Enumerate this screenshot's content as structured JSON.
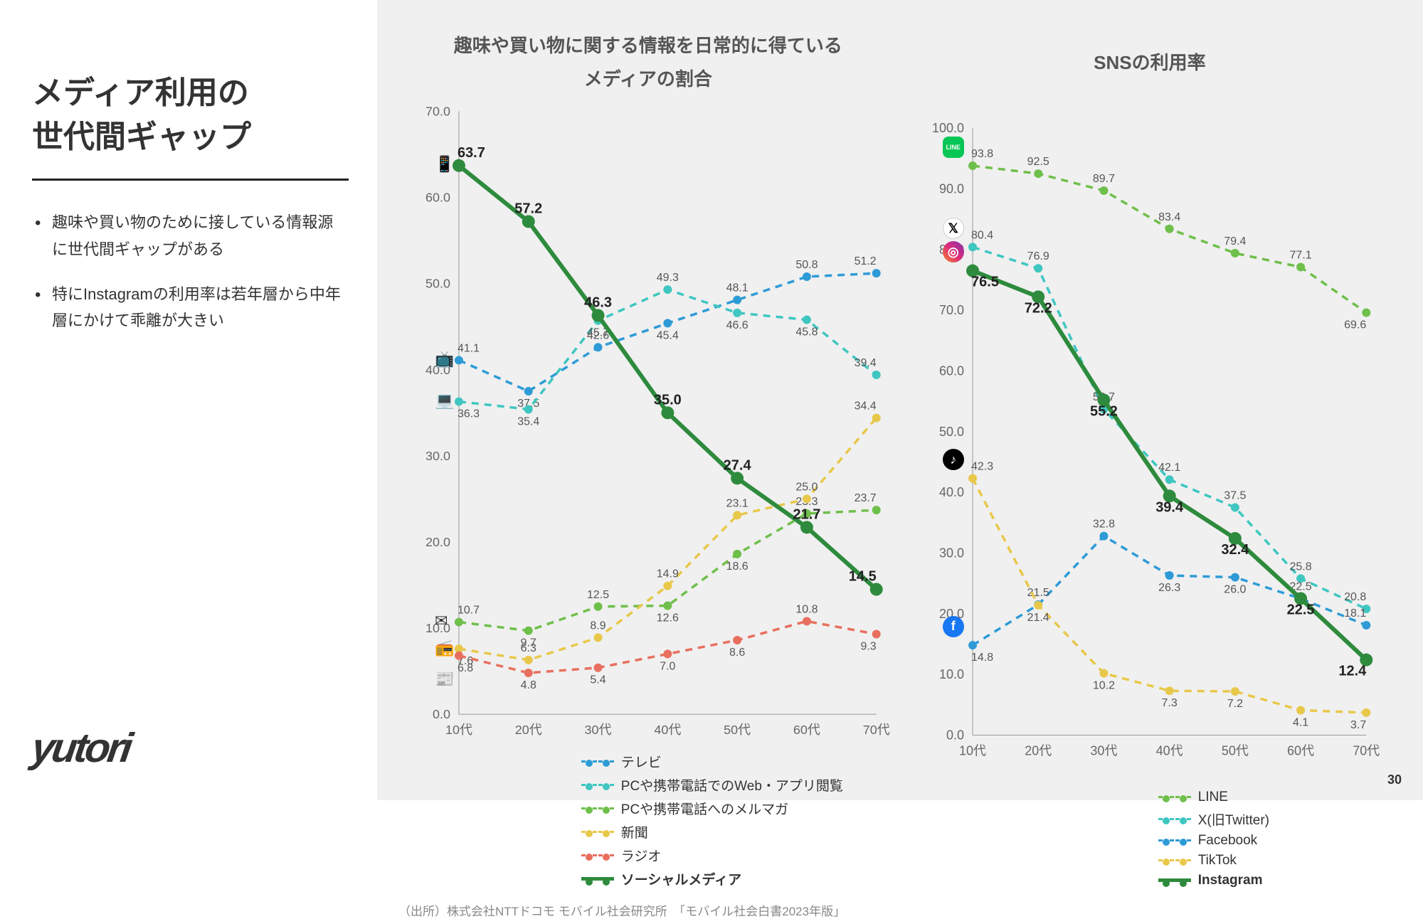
{
  "sidebar": {
    "title": "メディア利用の\n世代間ギャップ",
    "bullets": [
      "趣味や買い物のために接している情報源に世代間ギャップがある",
      "特にInstagramの利用率は若年層から中年層にかけて乖離が大きい"
    ],
    "logo": "yutori"
  },
  "source": "（出所）株式会社NTTドコモ モバイル社会研究所　「モバイル社会白書2023年版」",
  "page": "30",
  "categories": [
    "10代",
    "20代",
    "30代",
    "40代",
    "50代",
    "60代",
    "70代"
  ],
  "chart1": {
    "title": "趣味や買い物に関する情報を日常的に得ている\nメディアの割合",
    "ylim": [
      0,
      70
    ],
    "ytick": 10,
    "colors": {
      "tv": "#2e9bd6",
      "web": "#3fc6c0",
      "mail": "#6fbf4b",
      "news": "#e8c84a",
      "radio": "#e86f5e",
      "social": "#2e8b3d"
    },
    "series": {
      "tv": {
        "label": "テレビ",
        "dashed": true,
        "values": [
          41.1,
          37.5,
          42.6,
          45.4,
          48.1,
          50.8,
          51.2
        ],
        "label_pos": [
          "t",
          "b",
          "t",
          "b",
          "t",
          "t",
          "t"
        ]
      },
      "web": {
        "label": "PCや携帯電話でのWeb・アプリ閲覧",
        "dashed": true,
        "values": [
          36.3,
          35.4,
          45.7,
          49.3,
          46.6,
          45.8,
          39.4
        ],
        "label_pos": [
          "b",
          "b",
          "b",
          "t",
          "b",
          "b",
          "t"
        ]
      },
      "mail": {
        "label": "PCや携帯電話へのメルマガ",
        "dashed": true,
        "values": [
          10.7,
          9.7,
          12.5,
          12.6,
          18.6,
          23.3,
          23.7
        ],
        "label_pos": [
          "t",
          "b",
          "t",
          "b",
          "b",
          "t",
          "t"
        ]
      },
      "news": {
        "label": "新聞",
        "dashed": true,
        "values": [
          7.6,
          6.3,
          8.9,
          14.9,
          23.1,
          25.0,
          34.4
        ],
        "label_pos": [
          "b",
          "t",
          "t",
          "t",
          "t",
          "t",
          "t"
        ]
      },
      "radio": {
        "label": "ラジオ",
        "dashed": true,
        "values": [
          6.8,
          4.8,
          5.4,
          7.0,
          8.6,
          10.8,
          9.3
        ],
        "label_pos": [
          "b",
          "b",
          "b",
          "b",
          "b",
          "t",
          "b"
        ]
      },
      "social": {
        "label": "ソーシャルメディア",
        "dashed": false,
        "bold": true,
        "values": [
          63.7,
          57.2,
          46.3,
          35.0,
          27.4,
          21.7,
          14.5
        ],
        "label_pos": [
          "t",
          "t",
          "t",
          "t",
          "t",
          "t",
          "t"
        ]
      }
    },
    "series_order": [
      "tv",
      "web",
      "mail",
      "news",
      "radio",
      "social"
    ],
    "icons": [
      {
        "glyph": "📱",
        "y": 63.7
      },
      {
        "glyph": "📺",
        "y": 41.1
      },
      {
        "glyph": "💻",
        "y": 36.3
      },
      {
        "glyph": "✉",
        "y": 10.7
      },
      {
        "glyph": "📻",
        "y": 7.6
      },
      {
        "glyph": "📰",
        "y": 4
      }
    ]
  },
  "chart2": {
    "title": "SNSの利用率",
    "ylim": [
      0,
      100
    ],
    "ytick": 10,
    "colors": {
      "line": "#6fbf4b",
      "x": "#3fc6c0",
      "fb": "#2e9bd6",
      "tiktok": "#e8c84a",
      "insta": "#2e8b3d"
    },
    "series": {
      "line": {
        "label": "LINE",
        "dashed": true,
        "values": [
          93.8,
          92.5,
          89.7,
          83.4,
          79.4,
          77.1,
          69.6
        ],
        "label_pos": [
          "t",
          "t",
          "t",
          "t",
          "t",
          "t",
          "b"
        ]
      },
      "x": {
        "label": "X(旧Twitter)",
        "dashed": true,
        "values": [
          80.4,
          76.9,
          53.7,
          42.1,
          37.5,
          25.8,
          20.8
        ],
        "label_pos": [
          "t",
          "t",
          "t",
          "t",
          "t",
          "t",
          "t"
        ]
      },
      "fb": {
        "label": "Facebook",
        "dashed": true,
        "values": [
          14.8,
          21.5,
          32.8,
          26.3,
          26.0,
          22.5,
          18.1
        ],
        "label_pos": [
          "b",
          "t",
          "t",
          "b",
          "b",
          "t",
          "t"
        ]
      },
      "tiktok": {
        "label": "TikTok",
        "dashed": true,
        "values": [
          42.3,
          21.4,
          10.2,
          7.3,
          7.2,
          4.1,
          3.7
        ],
        "label_pos": [
          "t",
          "b",
          "b",
          "b",
          "b",
          "b",
          "b"
        ]
      },
      "insta": {
        "label": "Instagram",
        "dashed": false,
        "bold": true,
        "values": [
          76.5,
          72.2,
          55.2,
          39.4,
          32.4,
          22.5,
          12.4
        ],
        "label_pos": [
          "b",
          "b",
          "b",
          "b",
          "b",
          "b",
          "b"
        ]
      }
    },
    "series_order": [
      "line",
      "x",
      "fb",
      "tiktok",
      "insta"
    ],
    "icons": [
      {
        "name": "line-icon",
        "y": 93.8,
        "color": "#06c755",
        "glyph": "LINE"
      },
      {
        "name": "x-icon",
        "y": 80.4,
        "color": "#000",
        "glyph": "𝕏"
      },
      {
        "name": "instagram-icon",
        "y": 76.5,
        "color": "#d62976",
        "glyph": "◎"
      },
      {
        "name": "tiktok-icon",
        "y": 42.3,
        "color": "#000",
        "glyph": "♪"
      },
      {
        "name": "facebook-icon",
        "y": 14.8,
        "color": "#1877f2",
        "glyph": "f"
      }
    ]
  }
}
